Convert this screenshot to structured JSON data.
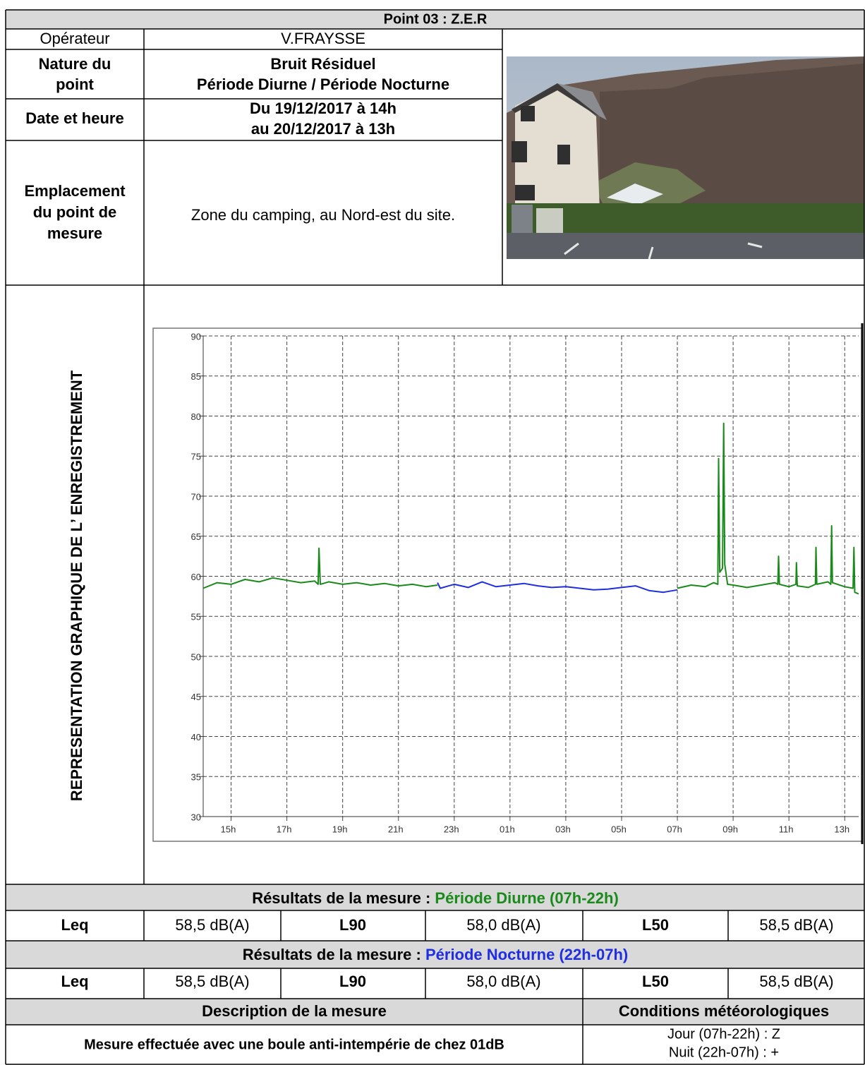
{
  "title": "Point 03 : Z.E.R",
  "info": {
    "operator": {
      "label": [
        "Opérateur"
      ],
      "value": [
        "V.FRAYSSE"
      ]
    },
    "nature": {
      "label": [
        "Nature du",
        "point"
      ],
      "value": [
        "Bruit Résiduel",
        "Période Diurne / Période Nocturne"
      ]
    },
    "date": {
      "label": [
        "Date et heure"
      ],
      "value": [
        "Du 19/12/2017 à 14h",
        "au 20/12/2017 à 13h"
      ]
    },
    "location": {
      "label": [
        "Emplacement",
        "du point de",
        "mesure"
      ],
      "value": [
        "Zone du camping, au Nord-est du site."
      ]
    }
  },
  "graph_label": "REPRESENTATION GRAPHIQUE  DE L’  ENREGISTREMENT",
  "chart_data": {
    "type": "line",
    "xlim": [
      14,
      37.5
    ],
    "xticks": [
      {
        "value": 15,
        "label": "15h"
      },
      {
        "value": 17,
        "label": "17h"
      },
      {
        "value": 19,
        "label": "19h"
      },
      {
        "value": 21,
        "label": "21h"
      },
      {
        "value": 23,
        "label": "23h"
      },
      {
        "value": 25,
        "label": "01h"
      },
      {
        "value": 27,
        "label": "03h"
      },
      {
        "value": 29,
        "label": "05h"
      },
      {
        "value": 31,
        "label": "07h"
      },
      {
        "value": 33,
        "label": "09h"
      },
      {
        "value": 35,
        "label": "11h"
      },
      {
        "value": 37,
        "label": "13h"
      }
    ],
    "ylim": [
      30,
      90
    ],
    "yticks": [
      30,
      35,
      40,
      45,
      50,
      55,
      60,
      65,
      70,
      75,
      80,
      85,
      90
    ],
    "grid": true,
    "series": [
      {
        "name": "Période Diurne (07h-22h)",
        "color": "#1a8a1a",
        "x": [
          14.0,
          14.5,
          15.0,
          15.5,
          16.0,
          16.5,
          17.0,
          17.5,
          18.0,
          18.12,
          18.15,
          18.2,
          18.5,
          19.0,
          19.5,
          20.0,
          20.5,
          21.0,
          21.5,
          22.0,
          22.4,
          null,
          31.0,
          31.5,
          32.0,
          32.3,
          32.45,
          32.48,
          32.52,
          32.62,
          32.66,
          32.7,
          32.8,
          33.0,
          33.5,
          34.0,
          34.5,
          34.6,
          34.63,
          34.66,
          35.0,
          35.25,
          35.27,
          35.3,
          35.7,
          35.95,
          35.97,
          36.0,
          36.4,
          36.5,
          36.53,
          36.56,
          37.0,
          37.3,
          37.33,
          37.36,
          37.5
        ],
        "values": [
          58.5,
          59.2,
          59.0,
          59.6,
          59.3,
          59.8,
          59.5,
          59.2,
          59.4,
          59.0,
          63.5,
          59.0,
          59.3,
          59.0,
          59.2,
          58.9,
          59.1,
          58.8,
          59.0,
          58.7,
          58.9,
          null,
          58.5,
          58.9,
          58.7,
          59.2,
          59.0,
          74.7,
          60.5,
          61.0,
          79.1,
          61.5,
          59.0,
          58.9,
          58.6,
          58.9,
          59.2,
          59.0,
          62.5,
          59.0,
          58.7,
          59.0,
          61.7,
          58.8,
          58.6,
          59.0,
          63.6,
          59.0,
          59.3,
          59.0,
          66.3,
          59.2,
          58.7,
          58.5,
          63.6,
          58.0,
          57.8
        ]
      },
      {
        "name": "Période Nocturne (22h-07h)",
        "color": "#1f2ee0",
        "x": [
          22.4,
          22.5,
          23.0,
          23.5,
          24.0,
          24.5,
          25.0,
          25.5,
          26.0,
          26.5,
          27.0,
          27.5,
          28.0,
          28.5,
          29.0,
          29.5,
          30.0,
          30.5,
          31.0
        ],
        "values": [
          59.2,
          58.5,
          59.0,
          58.6,
          59.3,
          58.7,
          58.9,
          59.1,
          58.8,
          58.6,
          58.7,
          58.5,
          58.3,
          58.4,
          58.6,
          58.8,
          58.2,
          58.0,
          58.3
        ]
      }
    ]
  },
  "results": [
    {
      "label": "Résultats de la mesure : ",
      "cells": [
        "Leq",
        "58,5 dB(A)",
        "L90",
        "58,0 dB(A)",
        "L50",
        "58,5 dB(A)"
      ]
    },
    {
      "label": "Résultats de la mesure : ",
      "cells": [
        "Leq",
        "58,5 dB(A)",
        "L90",
        "58,0 dB(A)",
        "L50",
        "58,5 dB(A)"
      ]
    }
  ],
  "description": {
    "header": "Description de la mesure",
    "text": "Mesure effectuée avec une boule anti-intempérie de chez 01dB"
  },
  "weather": {
    "header": "Conditions météorologiques",
    "lines": [
      "Jour (07h-22h) : Z",
      "Nuit (22h-07h) : +"
    ]
  }
}
